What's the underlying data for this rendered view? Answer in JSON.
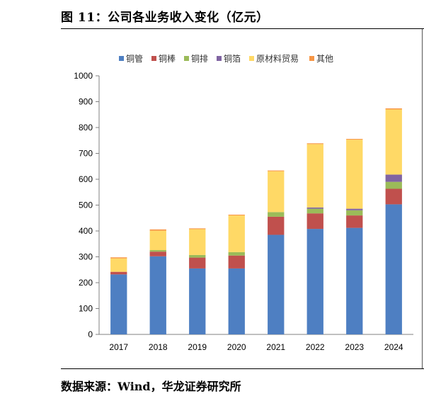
{
  "figure": {
    "title": "图 11：公司各业务收入变化（亿元）",
    "source": "数据来源：Wind，华龙证券研究所"
  },
  "chart_data": {
    "type": "bar",
    "stacked": true,
    "categories": [
      "2017",
      "2018",
      "2019",
      "2020",
      "2021",
      "2022",
      "2023",
      "2024"
    ],
    "series": [
      {
        "name": "铜管",
        "color": "#4E7FC2",
        "values": [
          232,
          302,
          255,
          255,
          385,
          408,
          412,
          503
        ]
      },
      {
        "name": "铜棒",
        "color": "#C0504D",
        "values": [
          10,
          18,
          42,
          50,
          70,
          60,
          48,
          60
        ]
      },
      {
        "name": "铜排",
        "color": "#9BBB59",
        "values": [
          0,
          6,
          10,
          13,
          18,
          18,
          20,
          27
        ]
      },
      {
        "name": "铜箔",
        "color": "#8064A2",
        "values": [
          0,
          0,
          0,
          0,
          0,
          5,
          6,
          28
        ]
      },
      {
        "name": "原材料贸易",
        "color": "#FFD966",
        "values": [
          52,
          75,
          100,
          142,
          158,
          245,
          267,
          252
        ]
      },
      {
        "name": "其他",
        "color": "#F79646",
        "values": [
          4,
          5,
          3,
          3,
          3,
          3,
          3,
          4
        ]
      }
    ],
    "ylim": [
      0,
      1000
    ],
    "yticks": [
      0,
      100,
      200,
      300,
      400,
      500,
      600,
      700,
      800,
      900,
      1000
    ],
    "legend_position": "top-center",
    "grid": false
  }
}
